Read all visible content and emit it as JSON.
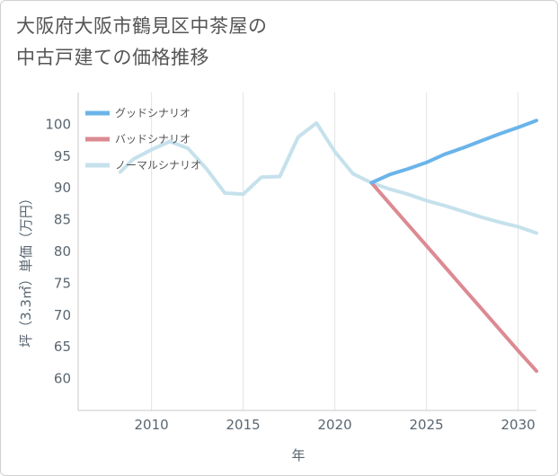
{
  "title": {
    "line1": "大阪府大阪市鶴見区中茶屋の",
    "line2": "中古戸建ての価格推移"
  },
  "chart_data": {
    "type": "line",
    "title": "大阪府大阪市鶴見区中茶屋の中古戸建ての価格推移",
    "xlabel": "年",
    "ylabel": "坪（3.3㎡）単価（万円）",
    "xlim": [
      2006,
      2031
    ],
    "ylim": [
      55,
      105
    ],
    "xticks": [
      2010,
      2015,
      2020,
      2025,
      2030
    ],
    "yticks": [
      60,
      65,
      70,
      75,
      80,
      85,
      90,
      95,
      100
    ],
    "grid": "vertical",
    "legend_position": "top-left",
    "series": [
      {
        "name": "ノーマルシナリオ",
        "color": "#c5e1ec",
        "x": [
          2008.3,
          2009,
          2010,
          2011,
          2012,
          2013,
          2014,
          2015,
          2016,
          2017,
          2018,
          2019,
          2020,
          2021,
          2022,
          2023,
          2024,
          2025,
          2026,
          2027,
          2028,
          2029,
          2030,
          2031
        ],
        "y": [
          92.5,
          94.5,
          96.0,
          97.3,
          96.2,
          93.0,
          89.2,
          89.0,
          91.7,
          91.8,
          98.0,
          100.2,
          95.7,
          92.2,
          90.8,
          89.8,
          89.0,
          88.0,
          87.2,
          86.3,
          85.4,
          84.6,
          83.9,
          82.9
        ]
      },
      {
        "name": "グッドシナリオ",
        "color": "#6ab4ea",
        "x": [
          2022,
          2023,
          2024,
          2025,
          2026,
          2027,
          2028,
          2029,
          2030,
          2031
        ],
        "y": [
          90.8,
          92.1,
          93.0,
          94.0,
          95.3,
          96.3,
          97.4,
          98.5,
          99.5,
          100.6
        ]
      },
      {
        "name": "バッドシナリオ",
        "color": "#dc8a92",
        "x": [
          2022,
          2023,
          2024,
          2025,
          2026,
          2027,
          2028,
          2029,
          2030,
          2031
        ],
        "y": [
          90.8,
          87.5,
          84.2,
          80.9,
          77.6,
          74.3,
          71.0,
          67.7,
          64.4,
          61.2
        ]
      }
    ],
    "legend": [
      {
        "name": "グッドシナリオ",
        "color": "#6ab4ea"
      },
      {
        "name": "バッドシナリオ",
        "color": "#dc8a92"
      },
      {
        "name": "ノーマルシナリオ",
        "color": "#c5e1ec"
      }
    ]
  }
}
